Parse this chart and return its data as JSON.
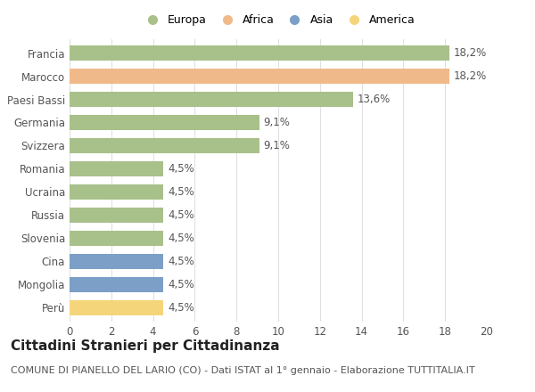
{
  "categories": [
    "Francia",
    "Marocco",
    "Paesi Bassi",
    "Germania",
    "Svizzera",
    "Romania",
    "Ucraina",
    "Russia",
    "Slovenia",
    "Cina",
    "Mongolia",
    "Perù"
  ],
  "values": [
    18.2,
    18.2,
    13.6,
    9.1,
    9.1,
    4.5,
    4.5,
    4.5,
    4.5,
    4.5,
    4.5,
    4.5
  ],
  "labels": [
    "18,2%",
    "18,2%",
    "13,6%",
    "9,1%",
    "9,1%",
    "4,5%",
    "4,5%",
    "4,5%",
    "4,5%",
    "4,5%",
    "4,5%",
    "4,5%"
  ],
  "colors": [
    "#a8c08a",
    "#f0b989",
    "#a8c08a",
    "#a8c08a",
    "#a8c08a",
    "#a8c08a",
    "#a8c08a",
    "#a8c08a",
    "#a8c08a",
    "#7b9fc7",
    "#7b9fc7",
    "#f5d57a"
  ],
  "legend": [
    {
      "label": "Europa",
      "color": "#a8c08a"
    },
    {
      "label": "Africa",
      "color": "#f0b989"
    },
    {
      "label": "Asia",
      "color": "#7b9fc7"
    },
    {
      "label": "America",
      "color": "#f5d57a"
    }
  ],
  "xlim": [
    0,
    20
  ],
  "xticks": [
    0,
    2,
    4,
    6,
    8,
    10,
    12,
    14,
    16,
    18,
    20
  ],
  "title": "Cittadini Stranieri per Cittadinanza",
  "subtitle": "COMUNE DI PIANELLO DEL LARIO (CO) - Dati ISTAT al 1° gennaio - Elaborazione TUTTITALIA.IT",
  "background_color": "#ffffff",
  "grid_color": "#e0e0e0",
  "bar_height": 0.65,
  "title_fontsize": 11,
  "subtitle_fontsize": 8,
  "label_fontsize": 8.5,
  "tick_fontsize": 8.5,
  "legend_fontsize": 9
}
